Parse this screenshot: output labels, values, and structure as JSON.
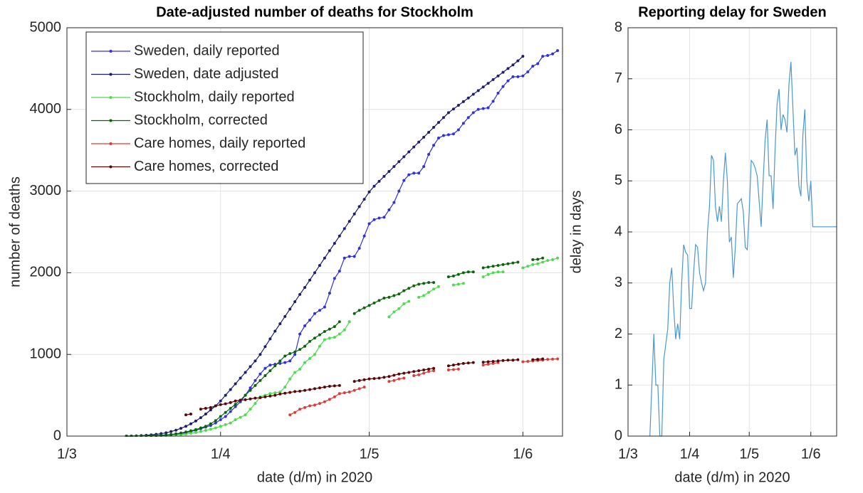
{
  "chart_data": [
    {
      "type": "line",
      "title": "Date-adjusted number of deaths for Stockholm",
      "xlabel": "date (d/m) in 2020",
      "ylabel": "number of deaths",
      "grid": true,
      "legend": "upper left",
      "markers": true,
      "xlim": [
        "2020-03-01",
        "2020-06-09"
      ],
      "xticks": [
        {
          "value": "2020-03-01",
          "label": "1/3"
        },
        {
          "value": "2020-04-01",
          "label": "1/4"
        },
        {
          "value": "2020-05-01",
          "label": "1/5"
        },
        {
          "value": "2020-06-01",
          "label": "1/6"
        }
      ],
      "ylim": [
        0,
        5000
      ],
      "yticks": [
        0,
        1000,
        2000,
        3000,
        4000,
        5000
      ],
      "x": [
        "2020-03-13",
        "2020-03-14",
        "2020-03-15",
        "2020-03-16",
        "2020-03-17",
        "2020-03-18",
        "2020-03-19",
        "2020-03-20",
        "2020-03-21",
        "2020-03-22",
        "2020-03-23",
        "2020-03-24",
        "2020-03-25",
        "2020-03-26",
        "2020-03-27",
        "2020-03-28",
        "2020-03-29",
        "2020-03-30",
        "2020-03-31",
        "2020-04-01",
        "2020-04-02",
        "2020-04-03",
        "2020-04-04",
        "2020-04-05",
        "2020-04-06",
        "2020-04-07",
        "2020-04-08",
        "2020-04-09",
        "2020-04-10",
        "2020-04-11",
        "2020-04-12",
        "2020-04-13",
        "2020-04-14",
        "2020-04-15",
        "2020-04-16",
        "2020-04-17",
        "2020-04-18",
        "2020-04-19",
        "2020-04-20",
        "2020-04-21",
        "2020-04-22",
        "2020-04-23",
        "2020-04-24",
        "2020-04-25",
        "2020-04-26",
        "2020-04-27",
        "2020-04-28",
        "2020-04-29",
        "2020-04-30",
        "2020-05-01",
        "2020-05-02",
        "2020-05-03",
        "2020-05-04",
        "2020-05-05",
        "2020-05-06",
        "2020-05-07",
        "2020-05-08",
        "2020-05-09",
        "2020-05-10",
        "2020-05-11",
        "2020-05-12",
        "2020-05-13",
        "2020-05-14",
        "2020-05-15",
        "2020-05-16",
        "2020-05-17",
        "2020-05-18",
        "2020-05-19",
        "2020-05-20",
        "2020-05-21",
        "2020-05-22",
        "2020-05-23",
        "2020-05-24",
        "2020-05-25",
        "2020-05-26",
        "2020-05-27",
        "2020-05-28",
        "2020-05-29",
        "2020-05-30",
        "2020-05-31",
        "2020-06-01",
        "2020-06-02",
        "2020-06-03",
        "2020-06-04",
        "2020-06-05",
        "2020-06-06",
        "2020-06-07",
        "2020-06-08"
      ],
      "series": [
        {
          "name": "Sweden, daily reported",
          "color": "#3030e0",
          "values": [
            0,
            0,
            1,
            2,
            3,
            5,
            7,
            10,
            13,
            17,
            22,
            30,
            40,
            55,
            70,
            90,
            110,
            130,
            160,
            200,
            240,
            300,
            360,
            420,
            500,
            590,
            680,
            760,
            830,
            870,
            880,
            890,
            900,
            920,
            1000,
            1250,
            1350,
            1420,
            1500,
            1540,
            1580,
            1750,
            1930,
            2020,
            2180,
            2200,
            2200,
            2300,
            2450,
            2600,
            2650,
            2670,
            2680,
            2770,
            2860,
            3000,
            3130,
            3200,
            3220,
            3220,
            3300,
            3450,
            3560,
            3650,
            3680,
            3690,
            3700,
            3750,
            3830,
            3900,
            3960,
            4000,
            4010,
            4020,
            4100,
            4200,
            4280,
            4350,
            4400,
            4400,
            4410,
            4460,
            4530,
            4560,
            4650,
            4660,
            4680,
            4720
          ]
        },
        {
          "name": "Sweden, date adjusted",
          "color": "#1c1c70",
          "values": [
            0,
            1,
            3,
            6,
            10,
            15,
            22,
            30,
            40,
            55,
            72,
            95,
            120,
            150,
            185,
            225,
            270,
            320,
            370,
            430,
            500,
            570,
            640,
            710,
            780,
            850,
            920,
            1000,
            1095,
            1190,
            1285,
            1375,
            1465,
            1555,
            1645,
            1735,
            1820,
            1910,
            2000,
            2090,
            2180,
            2270,
            2360,
            2450,
            2540,
            2630,
            2720,
            2810,
            2900,
            2990,
            3060,
            3120,
            3180,
            3240,
            3300,
            3360,
            3420,
            3480,
            3540,
            3600,
            3660,
            3720,
            3780,
            3840,
            3900,
            3960,
            4005,
            4050,
            4095,
            4140,
            4185,
            4230,
            4275,
            4320,
            4365,
            4410,
            4455,
            4500,
            4545,
            4595,
            4650,
            null,
            null,
            null,
            null,
            null,
            null,
            null
          ]
        },
        {
          "name": "Stockholm, daily reported",
          "color": "#4cdc4c",
          "values": [
            0,
            0,
            1,
            1,
            2,
            3,
            4,
            6,
            8,
            11,
            15,
            20,
            25,
            35,
            45,
            55,
            70,
            85,
            100,
            120,
            140,
            160,
            200,
            230,
            260,
            330,
            400,
            480,
            500,
            520,
            530,
            540,
            600,
            700,
            780,
            820,
            900,
            950,
            1000,
            1100,
            1180,
            1200,
            1210,
            1250,
            1300,
            1400,
            null,
            null,
            null,
            null,
            null,
            null,
            null,
            1460,
            1520,
            1560,
            1620,
            1650,
            null,
            1700,
            1720,
            1760,
            1800,
            1830,
            null,
            null,
            1850,
            1860,
            1870,
            null,
            null,
            null,
            1950,
            1980,
            2000,
            2010,
            2010,
            null,
            null,
            null,
            2060,
            2080,
            2100,
            2110,
            2130,
            2150,
            2160,
            2180
          ]
        },
        {
          "name": "Stockholm, corrected",
          "color": "#0a640a",
          "values": [
            0,
            0,
            1,
            2,
            3,
            5,
            7,
            10,
            14,
            20,
            28,
            38,
            50,
            65,
            80,
            100,
            120,
            150,
            190,
            240,
            290,
            340,
            390,
            440,
            500,
            560,
            620,
            680,
            740,
            800,
            860,
            920,
            980,
            1010,
            1030,
            1060,
            1100,
            1160,
            1200,
            1240,
            1280,
            1310,
            1340,
            1400,
            null,
            null,
            1500,
            1540,
            1570,
            1600,
            1630,
            1660,
            1690,
            1700,
            1720,
            1740,
            1780,
            1810,
            1840,
            1860,
            1870,
            1880,
            1880,
            null,
            null,
            1950,
            1960,
            1980,
            2000,
            2010,
            2010,
            null,
            2060,
            2070,
            2080,
            2090,
            2100,
            2110,
            2120,
            2130,
            null,
            null,
            2160,
            2165,
            2180,
            null,
            null,
            null
          ]
        },
        {
          "name": "Care homes, daily reported",
          "color": "#e03a3a",
          "values": [
            null,
            null,
            null,
            null,
            null,
            null,
            null,
            null,
            null,
            null,
            null,
            null,
            null,
            null,
            null,
            null,
            null,
            null,
            null,
            null,
            null,
            null,
            null,
            null,
            null,
            null,
            null,
            null,
            null,
            null,
            null,
            null,
            null,
            260,
            290,
            330,
            350,
            370,
            380,
            400,
            420,
            450,
            480,
            520,
            530,
            540,
            560,
            580,
            600,
            null,
            null,
            null,
            null,
            670,
            680,
            700,
            710,
            null,
            740,
            750,
            770,
            790,
            800,
            null,
            null,
            810,
            815,
            820,
            null,
            null,
            null,
            null,
            870,
            880,
            890,
            900,
            null,
            null,
            null,
            null,
            910,
            915,
            920,
            925,
            930,
            940,
            942,
            945
          ]
        },
        {
          "name": "Care homes, corrected",
          "color": "#5a0606",
          "values": [
            null,
            null,
            null,
            null,
            null,
            null,
            null,
            null,
            null,
            null,
            null,
            null,
            260,
            270,
            null,
            330,
            340,
            350,
            370,
            385,
            395,
            410,
            430,
            440,
            445,
            455,
            465,
            470,
            480,
            490,
            500,
            515,
            525,
            535,
            545,
            550,
            560,
            570,
            580,
            590,
            600,
            610,
            615,
            620,
            null,
            null,
            670,
            680,
            690,
            700,
            705,
            710,
            720,
            730,
            745,
            760,
            770,
            780,
            790,
            800,
            810,
            820,
            830,
            null,
            null,
            860,
            870,
            880,
            890,
            895,
            900,
            null,
            905,
            910,
            915,
            920,
            925,
            930,
            930,
            935,
            null,
            null,
            935,
            940,
            945,
            null,
            null,
            null
          ]
        }
      ]
    },
    {
      "type": "line",
      "title": "Reporting delay for Sweden",
      "xlabel": "date (d/m) in 2020",
      "ylabel": "delay in days",
      "grid": true,
      "markers": false,
      "color": "#4a98d0",
      "xlim": [
        "2020-03-01",
        "2020-06-14"
      ],
      "xticks": [
        {
          "value": "2020-03-01",
          "label": "1/3"
        },
        {
          "value": "2020-04-01",
          "label": "1/4"
        },
        {
          "value": "2020-05-01",
          "label": "1/5"
        },
        {
          "value": "2020-06-01",
          "label": "1/6"
        }
      ],
      "ylim": [
        0,
        8
      ],
      "yticks": [
        0,
        1,
        2,
        3,
        4,
        5,
        6,
        7,
        8
      ],
      "x": [
        "2020-03-12",
        "2020-03-13",
        "2020-03-14",
        "2020-03-15",
        "2020-03-16",
        "2020-03-17",
        "2020-03-18",
        "2020-03-19",
        "2020-03-20",
        "2020-03-21",
        "2020-03-22",
        "2020-03-23",
        "2020-03-24",
        "2020-03-25",
        "2020-03-26",
        "2020-03-27",
        "2020-03-28",
        "2020-03-29",
        "2020-03-30",
        "2020-03-31",
        "2020-04-01",
        "2020-04-02",
        "2020-04-03",
        "2020-04-04",
        "2020-04-05",
        "2020-04-06",
        "2020-04-07",
        "2020-04-08",
        "2020-04-09",
        "2020-04-10",
        "2020-04-11",
        "2020-04-12",
        "2020-04-13",
        "2020-04-14",
        "2020-04-15",
        "2020-04-16",
        "2020-04-17",
        "2020-04-18",
        "2020-04-19",
        "2020-04-20",
        "2020-04-21",
        "2020-04-22",
        "2020-04-23",
        "2020-04-24",
        "2020-04-25",
        "2020-04-26",
        "2020-04-27",
        "2020-04-28",
        "2020-04-29",
        "2020-04-30",
        "2020-05-01",
        "2020-05-02",
        "2020-05-03",
        "2020-05-04",
        "2020-05-05",
        "2020-05-06",
        "2020-05-07",
        "2020-05-08",
        "2020-05-09",
        "2020-05-10",
        "2020-05-11",
        "2020-05-12",
        "2020-05-13",
        "2020-05-14",
        "2020-05-15",
        "2020-05-16",
        "2020-05-17",
        "2020-05-18",
        "2020-05-19",
        "2020-05-20",
        "2020-05-21",
        "2020-05-22",
        "2020-05-23",
        "2020-05-24",
        "2020-05-25",
        "2020-05-26",
        "2020-05-27",
        "2020-05-28",
        "2020-05-29",
        "2020-05-30",
        "2020-05-31",
        "2020-06-01",
        "2020-06-02",
        "2020-06-03",
        "2020-06-04",
        "2020-06-05",
        "2020-06-06",
        "2020-06-07",
        "2020-06-08",
        "2020-06-09",
        "2020-06-10",
        "2020-06-11",
        "2020-06-12",
        "2020-06-13",
        "2020-06-14"
      ],
      "values": [
        0,
        1.0,
        2.0,
        1.0,
        1.0,
        0,
        0,
        1.5,
        1.8,
        2.1,
        3.0,
        3.3,
        2.5,
        1.9,
        2.2,
        1.9,
        3.0,
        3.75,
        3.6,
        3.55,
        2.5,
        2.5,
        3.2,
        3.75,
        3.7,
        3.2,
        3.0,
        2.85,
        3.0,
        4.0,
        4.5,
        5.5,
        5.4,
        4.5,
        4.2,
        4.5,
        4.2,
        5.0,
        5.55,
        5.0,
        3.8,
        3.9,
        3.1,
        3.7,
        4.55,
        4.6,
        4.65,
        4.4,
        3.7,
        3.65,
        4.4,
        5.4,
        5.35,
        5.25,
        5.1,
        4.6,
        4.1,
        5.0,
        5.8,
        6.2,
        5.1,
        5.1,
        4.45,
        5.6,
        6.5,
        6.8,
        6.0,
        6.3,
        6.2,
        5.95,
        6.9,
        7.33,
        6.4,
        5.5,
        5.65,
        4.9,
        4.7,
        5.9,
        6.4,
        5.0,
        4.6,
        5.0,
        4.1,
        4.1,
        4.1,
        4.1,
        4.1,
        4.1,
        4.1,
        4.1,
        4.1,
        4.1,
        4.1,
        4.1,
        4.1
      ]
    }
  ]
}
